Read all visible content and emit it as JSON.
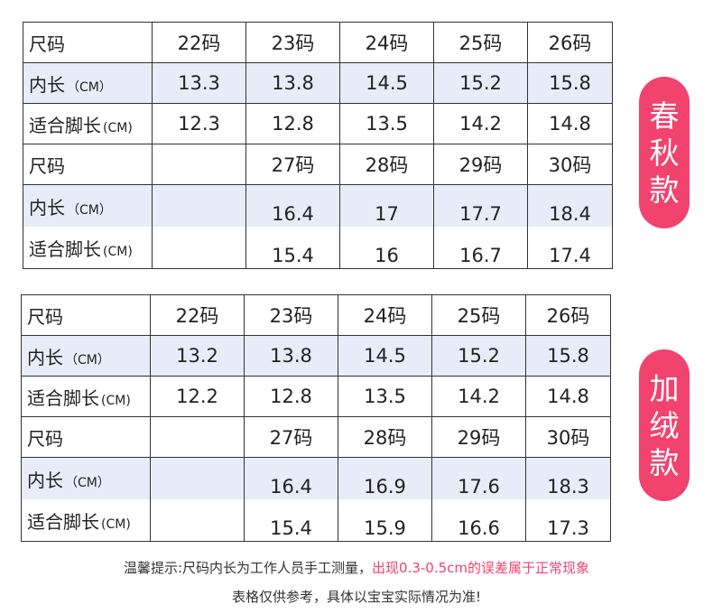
{
  "spring_table": {
    "rows": [
      {
        "label": "尺码",
        "unit": "",
        "cells": [
          "22码",
          "23码",
          "24码",
          "25码",
          "26码"
        ]
      },
      {
        "label": "内长",
        "unit": "（CM）",
        "cells": [
          "13.3",
          "13.8",
          "14.5",
          "15.2",
          "15.8"
        ]
      },
      {
        "label": "适合脚长",
        "unit": "(CM)",
        "cells": [
          "12.3",
          "12.8",
          "13.5",
          "14.2",
          "14.8"
        ]
      },
      {
        "label": "尺码",
        "unit": "",
        "cells": [
          "",
          "27码",
          "28码",
          "29码",
          "30码"
        ]
      },
      {
        "label": "内长",
        "unit": "（CM）",
        "cells": [
          "",
          "16.4",
          "17",
          "17.7",
          "18.4"
        ]
      },
      {
        "label": "适合脚长",
        "unit": "(CM)",
        "cells": [
          "",
          "15.4",
          "16",
          "16.7",
          "17.4"
        ]
      }
    ],
    "badge": [
      "春",
      "秋",
      "款"
    ]
  },
  "fleece_table": {
    "rows": [
      {
        "label": "尺码",
        "unit": "",
        "cells": [
          "22码",
          "23码",
          "24码",
          "25码",
          "26码"
        ]
      },
      {
        "label": "内长",
        "unit": "（CM）",
        "cells": [
          "13.2",
          "13.8",
          "14.5",
          "15.2",
          "15.8"
        ]
      },
      {
        "label": "适合脚长",
        "unit": "(CM)",
        "cells": [
          "12.2",
          "12.8",
          "13.5",
          "14.2",
          "14.8"
        ]
      },
      {
        "label": "尺码",
        "unit": "",
        "cells": [
          "",
          "27码",
          "28码",
          "29码",
          "30码"
        ]
      },
      {
        "label": "内长",
        "unit": "（CM）",
        "cells": [
          "",
          "16.4",
          "16.9",
          "17.6",
          "18.3"
        ]
      },
      {
        "label": "适合脚长",
        "unit": "(CM)",
        "cells": [
          "",
          "15.4",
          "15.9",
          "16.6",
          "17.3"
        ]
      }
    ],
    "badge": [
      "加",
      "绒",
      "款"
    ]
  },
  "notes": {
    "line1_plain": "温馨提示:尺码内长为工作人员手工测量，",
    "line1_accent": "出现0.3-0.5cm的误差属于正常现象",
    "line2": "表格仅供参考，具体以宝宝实际情况为准!"
  },
  "colors": {
    "accent": "#f2426e",
    "row_shade": "#e8ecf8",
    "border": "#333333"
  }
}
